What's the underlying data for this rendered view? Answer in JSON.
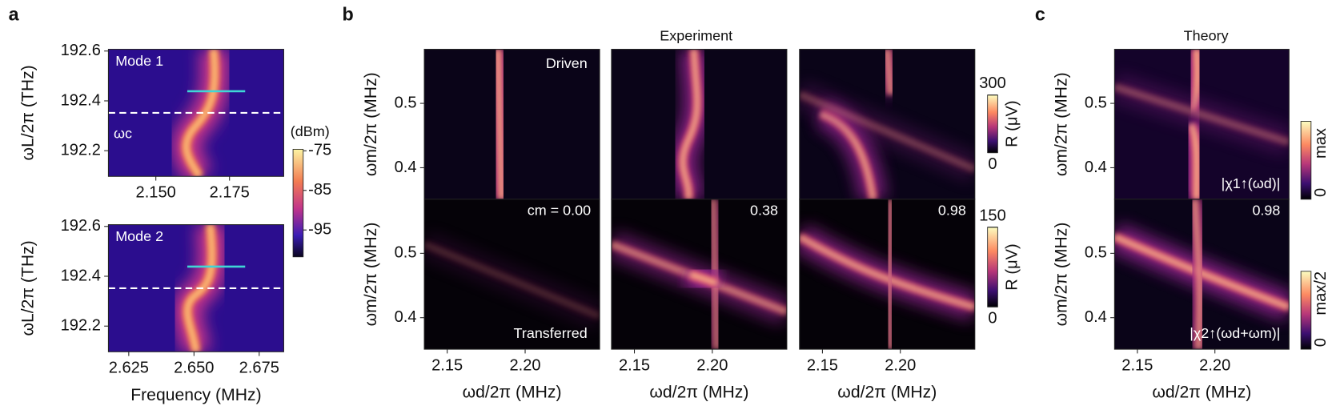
{
  "panel_labels": [
    "a",
    "b",
    "c"
  ],
  "titles": [
    "Experiment",
    "Theory"
  ],
  "chart_data": [
    {
      "type": "heatmap",
      "xlim": [
        2.1339,
        2.1934
      ],
      "ylim": [
        192.097,
        192.607
      ],
      "xticks": [
        {
          "value": 2.15,
          "label": "2.150"
        },
        {
          "value": 2.175,
          "label": "2.175"
        }
      ],
      "yticks": [
        192.2,
        192.4,
        192.6
      ],
      "ylabel": "ωL/2π (THz)",
      "annotations": [
        "Mode 1",
        "ωc"
      ],
      "colorbar": {
        "label": "(dBm)",
        "lim": [
          -101.8,
          -74.6
        ],
        "ticks": [
          -75,
          -85,
          -95
        ]
      }
    },
    {
      "type": "heatmap",
      "xlim": [
        2.6172,
        2.6844
      ],
      "ylim": [
        192.097,
        192.607
      ],
      "xticks": [
        {
          "value": 2.625,
          "label": "2.625"
        },
        {
          "value": 2.65,
          "label": "2.650"
        },
        {
          "value": 2.675,
          "label": "2.675"
        }
      ],
      "yticks": [
        192.2,
        192.4,
        192.6
      ],
      "xlabel": "Frequency (MHz)",
      "ylabel": "ωL/2π (THz)",
      "annotations": [
        "Mode 2"
      ]
    },
    {
      "type": "heatmap",
      "xlim": [
        2.1353,
        2.2478
      ],
      "ylim": [
        0.351,
        0.584
      ],
      "yticks": [
        0.4,
        0.5
      ],
      "ylabel": "ωm/2π (MHz)",
      "annotations": [
        "Driven"
      ]
    },
    {
      "type": "heatmap",
      "xlim": [
        2.1353,
        2.2478
      ],
      "ylim": [
        0.351,
        0.584
      ],
      "annotations": []
    },
    {
      "type": "heatmap",
      "xlim": [
        2.1353,
        2.2478
      ],
      "ylim": [
        0.351,
        0.584
      ],
      "annotations": [],
      "colorbar": {
        "label": "R (μV)",
        "lim": [
          0,
          300
        ],
        "ticks": [
          0,
          300
        ]
      }
    },
    {
      "type": "heatmap",
      "xlim": [
        2.1353,
        2.2478
      ],
      "ylim": [
        0.351,
        0.584
      ],
      "xticks": [
        2.15,
        {
          "value": 2.2,
          "label": "2.20"
        }
      ],
      "yticks": [
        0.4,
        0.5
      ],
      "xlabel": "ωd/2π (MHz)",
      "ylabel": "ωm/2π (MHz)",
      "annotations": [
        "cm = 0.00",
        "Transferred"
      ]
    },
    {
      "type": "heatmap",
      "xlim": [
        2.1353,
        2.2478
      ],
      "ylim": [
        0.351,
        0.584
      ],
      "xticks": [
        2.15,
        {
          "value": 2.2,
          "label": "2.20"
        }
      ],
      "xlabel": "ωd/2π (MHz)",
      "annotations": [
        "0.38"
      ]
    },
    {
      "type": "heatmap",
      "xlim": [
        2.1353,
        2.2478
      ],
      "ylim": [
        0.351,
        0.584
      ],
      "xticks": [
        2.15,
        {
          "value": 2.2,
          "label": "2.20"
        }
      ],
      "xlabel": "ωd/2π (MHz)",
      "annotations": [
        "0.98"
      ],
      "colorbar": {
        "label": "R (μV)",
        "lim": [
          0,
          150
        ],
        "ticks": [
          0,
          150
        ]
      }
    },
    {
      "type": "heatmap",
      "xlim": [
        2.1353,
        2.2478
      ],
      "ylim": [
        0.351,
        0.584
      ],
      "yticks": [
        0.4,
        0.5
      ],
      "ylabel": "ωm/2π (MHz)",
      "annotations": [
        "|χ1↑(ωd)|"
      ],
      "colorbar": {
        "tick_labels": [
          "0",
          "max"
        ]
      }
    },
    {
      "type": "heatmap",
      "xlim": [
        2.1353,
        2.2478
      ],
      "ylim": [
        0.351,
        0.584
      ],
      "xticks": [
        2.15,
        {
          "value": 2.2,
          "label": "2.20"
        }
      ],
      "yticks": [
        0.4,
        0.5
      ],
      "xlabel": "ωd/2π (MHz)",
      "ylabel": "ωm/2π (MHz)",
      "annotations": [
        "0.98",
        "|χ2↑(ωd+ωm)|"
      ],
      "colorbar": {
        "tick_labels": [
          "0",
          "max/2"
        ]
      }
    }
  ]
}
